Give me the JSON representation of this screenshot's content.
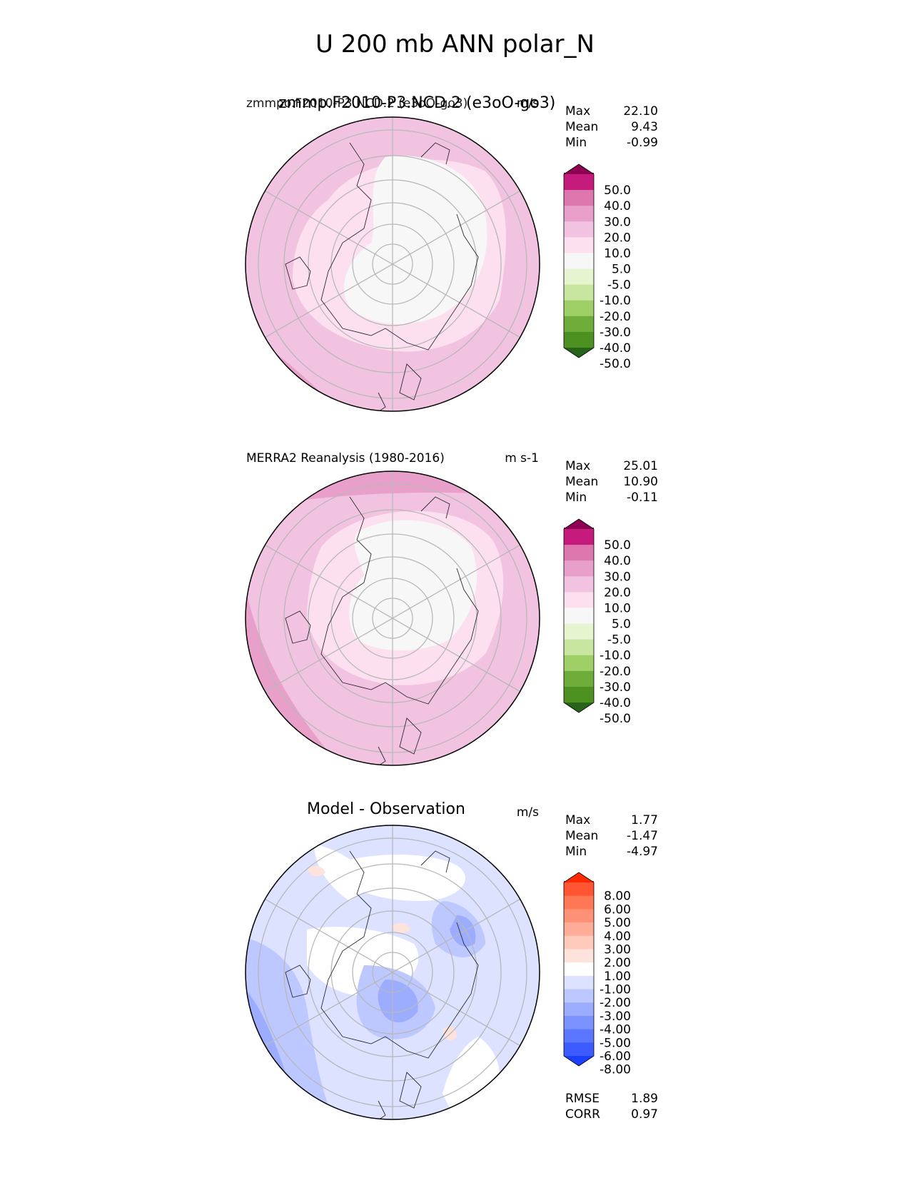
{
  "title": "U 200 mb ANN polar_N",
  "panels": [
    {
      "id": "test",
      "title": "zmmp.F2010-P3.NCD.2 (e3oO-go3)",
      "title_overlap": "zmmpo.F2010-P3.NCD.2 (e3oO-go3)",
      "units": "m/s",
      "stats": [
        {
          "label": "Max",
          "value": "22.10"
        },
        {
          "label": "Mean",
          "value": "9.43"
        },
        {
          "label": "Min",
          "value": "-0.99"
        }
      ],
      "colorbar": {
        "labels": [
          "50.0",
          "40.0",
          "30.0",
          "20.0",
          "10.0",
          "5.0",
          "-5.0",
          "-10.0",
          "-20.0",
          "-30.0",
          "-40.0",
          "-50.0"
        ],
        "colors": [
          "#8e0152",
          "#c51b7d",
          "#de77ae",
          "#e8a0cb",
          "#f1c3e0",
          "#fde0ef",
          "#f7f7f7",
          "#e6f5d0",
          "#c8e6a0",
          "#9fd068",
          "#6fac3a",
          "#4d9221",
          "#276419"
        ]
      }
    },
    {
      "id": "reference",
      "title": "MERRA2 Reanalysis (1980-2016)",
      "units": "m s-1",
      "stats": [
        {
          "label": "Max",
          "value": "25.01"
        },
        {
          "label": "Mean",
          "value": "10.90"
        },
        {
          "label": "Min",
          "value": "-0.11"
        }
      ],
      "colorbar": {
        "labels": [
          "50.0",
          "40.0",
          "30.0",
          "20.0",
          "10.0",
          "5.0",
          "-5.0",
          "-10.0",
          "-20.0",
          "-30.0",
          "-40.0",
          "-50.0"
        ],
        "colors": [
          "#8e0152",
          "#c51b7d",
          "#de77ae",
          "#e8a0cb",
          "#f1c3e0",
          "#fde0ef",
          "#f7f7f7",
          "#e6f5d0",
          "#c8e6a0",
          "#9fd068",
          "#6fac3a",
          "#4d9221",
          "#276419"
        ]
      }
    },
    {
      "id": "diff",
      "title": "Model - Observation",
      "units": "m/s",
      "stats": [
        {
          "label": "Max",
          "value": "1.77"
        },
        {
          "label": "Mean",
          "value": "-1.47"
        },
        {
          "label": "Min",
          "value": "-4.97"
        }
      ],
      "colorbar": {
        "labels": [
          "8.00",
          "6.00",
          "5.00",
          "4.00",
          "3.00",
          "2.00",
          "1.00",
          "-1.00",
          "-2.00",
          "-3.00",
          "-4.00",
          "-5.00",
          "-6.00",
          "-8.00"
        ],
        "colors": [
          "#ff2a00",
          "#ff5533",
          "#ff7755",
          "#ff9177",
          "#ffad99",
          "#ffcabb",
          "#fde3dc",
          "#ffffff",
          "#dce2ff",
          "#bcc8ff",
          "#9cadff",
          "#7c92ff",
          "#5c77ff",
          "#3c5cff",
          "#1c40ff"
        ]
      },
      "extra_stats": [
        {
          "label": "RMSE",
          "value": "1.89"
        },
        {
          "label": "CORR",
          "value": "0.97"
        }
      ]
    }
  ],
  "chart_data": [
    {
      "type": "heatmap",
      "title": "zmmp.F2010-P3.NCD.2 (e3oO-go3)",
      "projection": "north polar stereographic",
      "units": "m/s",
      "stats": {
        "max": 22.1,
        "mean": 9.43,
        "min": -0.99
      },
      "contour_levels": [
        -50,
        -40,
        -30,
        -20,
        -10,
        -5,
        5,
        10,
        20,
        30,
        40,
        50
      ]
    },
    {
      "type": "heatmap",
      "title": "MERRA2 Reanalysis (1980-2016)",
      "projection": "north polar stereographic",
      "units": "m s-1",
      "stats": {
        "max": 25.01,
        "mean": 10.9,
        "min": -0.11
      },
      "contour_levels": [
        -50,
        -40,
        -30,
        -20,
        -10,
        -5,
        5,
        10,
        20,
        30,
        40,
        50
      ]
    },
    {
      "type": "heatmap",
      "title": "Model - Observation",
      "projection": "north polar stereographic",
      "units": "m/s",
      "stats": {
        "max": 1.77,
        "mean": -1.47,
        "min": -4.97,
        "rmse": 1.89,
        "corr": 0.97
      },
      "contour_levels": [
        -8,
        -6,
        -5,
        -4,
        -3,
        -2,
        -1,
        1,
        2,
        3,
        4,
        5,
        6,
        8
      ]
    }
  ]
}
